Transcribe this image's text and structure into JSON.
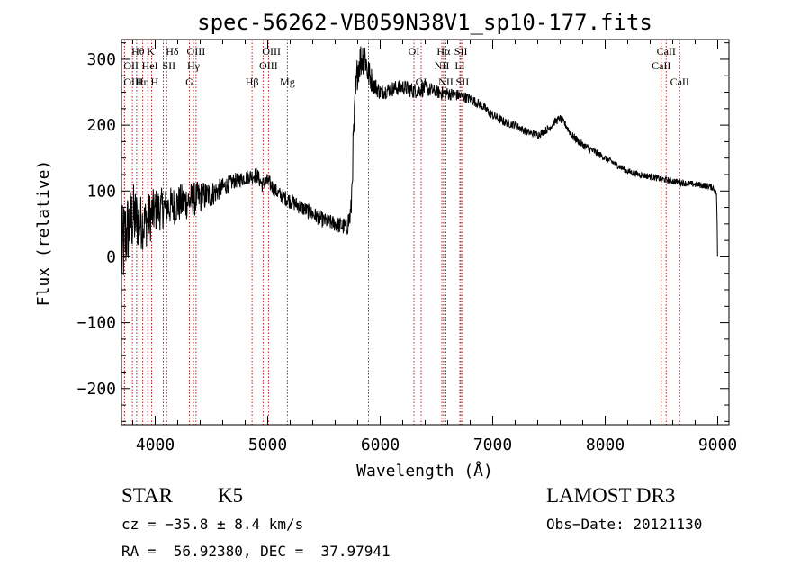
{
  "chart_data": {
    "type": "line",
    "title": "spec-56262-VB059N38V1_sp10-177.fits",
    "xlabel": "Wavelength (Å)",
    "ylabel": "Flux (relative)",
    "xlim": [
      3700,
      9100
    ],
    "ylim": [
      -255,
      330
    ],
    "xticks": [
      4000,
      5000,
      6000,
      7000,
      8000,
      9000
    ],
    "xtick_labels": [
      "4000",
      "5000",
      "6000",
      "7000",
      "8000",
      "9000"
    ],
    "yticks": [
      -200,
      -100,
      0,
      100,
      200,
      300
    ],
    "ytick_labels": [
      "−200",
      "−100",
      "0",
      "100",
      "200",
      "300"
    ],
    "grid": false,
    "spectrum_anchors": {
      "x": [
        3700,
        3720,
        3750,
        3800,
        3850,
        3900,
        3950,
        4000,
        4100,
        4200,
        4300,
        4400,
        4500,
        4600,
        4700,
        4800,
        4900,
        4950,
        5000,
        5100,
        5200,
        5300,
        5400,
        5500,
        5600,
        5700,
        5740,
        5760,
        5780,
        5800,
        5830,
        5860,
        5890,
        5920,
        5950,
        6000,
        6100,
        6200,
        6300,
        6400,
        6500,
        6600,
        6700,
        6800,
        6900,
        7000,
        7100,
        7200,
        7300,
        7400,
        7500,
        7550,
        7600,
        7650,
        7700,
        7800,
        7900,
        8000,
        8100,
        8200,
        8300,
        8400,
        8500,
        8600,
        8700,
        8800,
        8900,
        8960,
        8990,
        9000
      ],
      "y": [
        0,
        20,
        40,
        60,
        55,
        50,
        60,
        70,
        75,
        80,
        85,
        90,
        95,
        105,
        115,
        120,
        125,
        110,
        115,
        95,
        85,
        75,
        65,
        55,
        50,
        45,
        65,
        170,
        240,
        290,
        300,
        310,
        280,
        270,
        260,
        250,
        255,
        258,
        252,
        256,
        250,
        248,
        245,
        240,
        230,
        215,
        205,
        200,
        190,
        185,
        195,
        205,
        210,
        200,
        185,
        170,
        160,
        150,
        140,
        130,
        125,
        122,
        118,
        115,
        112,
        110,
        108,
        105,
        95,
        0
      ],
      "noise": [
        70,
        70,
        60,
        55,
        45,
        40,
        40,
        35,
        30,
        30,
        28,
        25,
        20,
        15,
        12,
        12,
        12,
        12,
        12,
        12,
        12,
        12,
        12,
        12,
        12,
        15,
        25,
        30,
        30,
        30,
        30,
        30,
        25,
        20,
        15,
        12,
        12,
        12,
        12,
        12,
        10,
        10,
        9,
        8,
        7,
        7,
        7,
        6,
        6,
        6,
        6,
        6,
        6,
        6,
        6,
        6,
        6,
        5,
        5,
        5,
        5,
        5,
        5,
        5,
        5,
        5,
        5,
        5,
        5,
        0
      ]
    },
    "lines": [
      {
        "label": "Hθ",
        "w": 3797,
        "row": 0,
        "pos": "left"
      },
      {
        "label": "OII",
        "w": 3727,
        "row": 1,
        "pos": "left"
      },
      {
        "label": "OIII",
        "w": 3727,
        "row": 2,
        "pos": "left"
      },
      {
        "label": "Hη",
        "w": 3835,
        "row": 2,
        "pos": "left"
      },
      {
        "label": "HeI",
        "w": 3889,
        "row": 1,
        "pos": "left"
      },
      {
        "label": "K",
        "w": 3934,
        "row": 0,
        "pos": "left"
      },
      {
        "label": "H",
        "w": 3968,
        "row": 2,
        "pos": "left"
      },
      {
        "label": "Hδ",
        "w": 4102,
        "row": 0,
        "pos": "left"
      },
      {
        "label": "SII",
        "w": 4072,
        "row": 1,
        "pos": "left"
      },
      {
        "label": "OIII",
        "w": 4363,
        "row": 0,
        "pos": "center"
      },
      {
        "label": "Hγ",
        "w": 4340,
        "row": 1,
        "pos": "center"
      },
      {
        "label": "G",
        "w": 4304,
        "row": 2,
        "pos": "center"
      },
      {
        "label": "Hβ",
        "w": 4861,
        "row": 2,
        "pos": "center"
      },
      {
        "label": "OIII",
        "w": 4959,
        "row": 0,
        "pos": "left"
      },
      {
        "label": "OIII",
        "w": 5007,
        "row": 1,
        "pos": "center"
      },
      {
        "label": "Mg",
        "w": 5175,
        "row": 2,
        "pos": "center"
      },
      {
        "label": "",
        "w": 5896,
        "row": -1,
        "pos": "center"
      },
      {
        "label": "OI",
        "w": 6300,
        "row": 0,
        "pos": "center"
      },
      {
        "label": "OI",
        "w": 6364,
        "row": 2,
        "pos": "center"
      },
      {
        "label": "Hα",
        "w": 6563,
        "row": 0,
        "pos": "center"
      },
      {
        "label": "NII",
        "w": 6548,
        "row": 1,
        "pos": "center"
      },
      {
        "label": "NII",
        "w": 6584,
        "row": 2,
        "pos": "center"
      },
      {
        "label": "SII",
        "w": 6717,
        "row": 0,
        "pos": "center"
      },
      {
        "label": "LI",
        "w": 6708,
        "row": 1,
        "pos": "center"
      },
      {
        "label": "SII",
        "w": 6731,
        "row": 2,
        "pos": "center"
      },
      {
        "label": "CaII",
        "w": 8542,
        "row": 0,
        "pos": "center"
      },
      {
        "label": "CaII",
        "w": 8498,
        "row": 1,
        "pos": "center"
      },
      {
        "label": "CaII",
        "w": 8662,
        "row": 2,
        "pos": "center"
      }
    ]
  },
  "info": {
    "class_label": "STAR",
    "subclass": "K5",
    "survey": "LAMOST DR3",
    "cz": "cz = −35.8 ± 8.4 km/s",
    "obs_date": "Obs−Date: 20121130",
    "radec": "RA =  56.92380, DEC =  37.97941"
  },
  "colors": {
    "spectrum": "#000000",
    "line_markers": "#b22222",
    "axes": "#000000"
  }
}
